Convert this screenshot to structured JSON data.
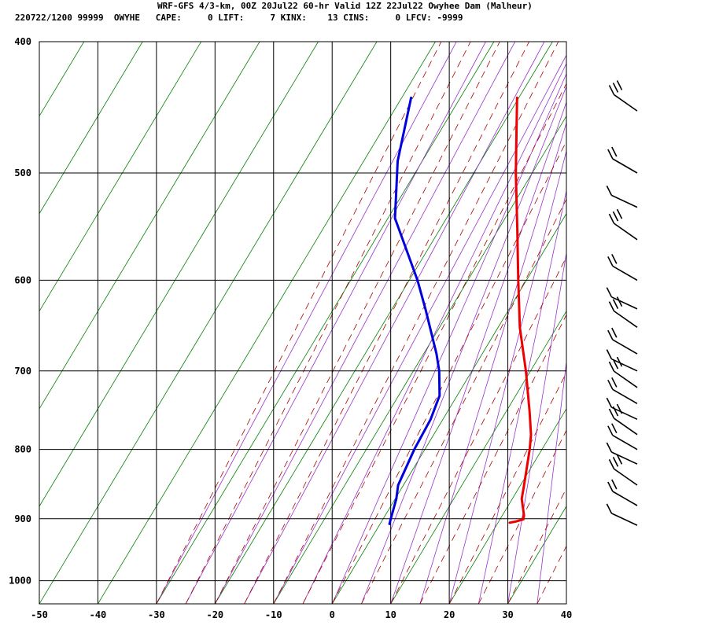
{
  "header": {
    "line1": "WRF-GFS 4/3-km, 00Z 20Jul22 60-hr Valid 12Z 22Jul22 Owyhee Dam (Malheur)",
    "line2": "220722/1200 99999  OWYHE   CAPE:     0 LIFT:     7 KINX:    13 CINS:     0 LFCV: -9999"
  },
  "chart_data": {
    "type": "line",
    "diagram": "skew-T log-P",
    "title": "WRF-GFS 4/3-km, 00Z 20Jul22 60-hr Valid 12Z 22Jul22 Owyhee Dam (Malheur)",
    "station": "OWYHE",
    "valid": "220722/1200",
    "indices": {
      "CAPE": 0,
      "LIFT": 7,
      "KINX": 13,
      "CINS": 0,
      "LFCV": -9999
    },
    "xlabel": "",
    "ylabel": "",
    "x_ticks": [
      -50,
      -40,
      -30,
      -20,
      -10,
      0,
      10,
      20,
      30,
      40
    ],
    "y_ticks": [
      400,
      500,
      600,
      700,
      800,
      900,
      1000
    ],
    "xlim": [
      -50,
      40
    ],
    "ylim_hPa": [
      1040,
      400
    ],
    "y_scale": "log",
    "grid": true,
    "colors": {
      "temperature": "#ee0000",
      "dewpoint": "#0000dd",
      "isotherms_dry_adiabats": "#008000",
      "moist_adiabats": "#9933cc",
      "mixing_ratio": "#aa0000",
      "grid": "#000000"
    },
    "series": [
      {
        "role": "temperature",
        "points": [
          {
            "p": 906,
            "t": 22.0
          },
          {
            "p": 904,
            "t": 23.0
          },
          {
            "p": 901,
            "t": 24.0
          },
          {
            "p": 895,
            "t": 23.7
          },
          {
            "p": 870,
            "t": 21.6
          },
          {
            "p": 850,
            "t": 20.6
          },
          {
            "p": 800,
            "t": 17.9
          },
          {
            "p": 780,
            "t": 16.6
          },
          {
            "p": 750,
            "t": 14.0
          },
          {
            "p": 700,
            "t": 9.2
          },
          {
            "p": 650,
            "t": 3.7
          },
          {
            "p": 600,
            "t": -1.4
          },
          {
            "p": 550,
            "t": -6.8
          },
          {
            "p": 500,
            "t": -12.8
          },
          {
            "p": 440,
            "t": -20.3
          }
        ]
      },
      {
        "role": "dewpoint",
        "points": [
          {
            "p": 908,
            "t": 1.6
          },
          {
            "p": 900,
            "t": 1.3
          },
          {
            "p": 870,
            "t": 0.2
          },
          {
            "p": 850,
            "t": -0.9
          },
          {
            "p": 800,
            "t": -1.8
          },
          {
            "p": 760,
            "t": -2.1
          },
          {
            "p": 730,
            "t": -3.0
          },
          {
            "p": 700,
            "t": -5.6
          },
          {
            "p": 680,
            "t": -7.8
          },
          {
            "p": 630,
            "t": -14.3
          },
          {
            "p": 600,
            "t": -18.6
          },
          {
            "p": 540,
            "t": -28.8
          },
          {
            "p": 490,
            "t": -34.2
          },
          {
            "p": 440,
            "t": -38.4
          }
        ]
      }
    ],
    "wind_barbs": [
      {
        "p": 910
      },
      {
        "p": 880
      },
      {
        "p": 850
      },
      {
        "p": 820
      },
      {
        "p": 800
      },
      {
        "p": 780
      },
      {
        "p": 760
      },
      {
        "p": 740
      },
      {
        "p": 720
      },
      {
        "p": 700
      },
      {
        "p": 680
      },
      {
        "p": 650
      },
      {
        "p": 630
      },
      {
        "p": 600
      },
      {
        "p": 560
      },
      {
        "p": 530
      },
      {
        "p": 500
      },
      {
        "p": 450
      }
    ]
  }
}
